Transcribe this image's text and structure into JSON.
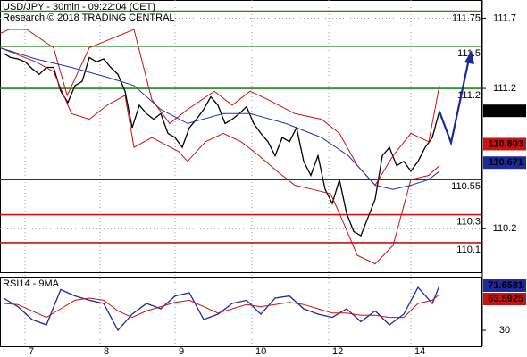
{
  "chart_data": [
    {
      "type": "line",
      "title": "USD/JPY - 30min - 09:22:04 (CET)",
      "subtitle": "Research © 2018 TRADING CENTRAL",
      "xlim": [
        -0.5,
        67
      ],
      "xticks": [
        {
          "value": 3,
          "label": "7"
        },
        {
          "value": 13.5,
          "label": "8"
        },
        {
          "value": 24,
          "label": "9"
        },
        {
          "value": 34.75,
          "label": "10"
        },
        {
          "value": 45.5,
          "label": "12"
        },
        {
          "value": 57,
          "label": "14"
        }
      ],
      "ylim": [
        109.89,
        111.83
      ],
      "yticks": [
        110.2,
        111.2,
        111.7
      ],
      "grid": true,
      "levels": [
        {
          "value": 111.75,
          "color": "#1a8a1a"
        },
        {
          "value": 111.5,
          "color": "#1a8a1a"
        },
        {
          "value": 111.2,
          "color": "#1a8a1a"
        },
        {
          "value": 110.55,
          "color": "#1c2a9c"
        },
        {
          "value": 110.3,
          "color": "#cc1111"
        },
        {
          "value": 110.1,
          "color": "#cc1111"
        }
      ],
      "tags": [
        {
          "value": 111.04,
          "color": "#000000"
        },
        {
          "value": 110.803,
          "color": "#cc1111"
        },
        {
          "value": 110.671,
          "color": "#1c2a9c"
        }
      ],
      "series": [
        {
          "color": "#000000",
          "x": [
            0,
            1,
            2,
            3,
            4,
            5,
            6,
            7,
            8,
            9,
            10,
            11,
            12,
            13,
            14,
            15,
            16,
            17,
            18,
            19,
            20,
            21,
            22,
            23,
            24,
            25,
            26,
            27,
            28,
            29,
            30,
            31,
            32,
            33,
            34,
            35,
            36,
            37,
            38,
            39,
            40,
            41,
            42,
            43,
            44,
            45,
            46,
            47,
            48,
            49,
            50,
            51,
            52,
            53,
            54,
            55,
            56,
            57,
            58,
            59,
            60,
            61
          ],
          "values": [
            111.45,
            111.42,
            111.41,
            111.39,
            111.34,
            111.3,
            111.35,
            111.35,
            111.18,
            111.1,
            111.22,
            111.25,
            111.42,
            111.39,
            111.41,
            111.35,
            111.3,
            111.18,
            110.92,
            111.08,
            111.02,
            110.98,
            111.02,
            110.88,
            110.85,
            110.78,
            110.92,
            110.98,
            111.05,
            111.14,
            111.08,
            110.95,
            110.98,
            111.02,
            111.07,
            110.95,
            110.88,
            110.82,
            110.72,
            110.85,
            110.82,
            110.92,
            110.68,
            110.58,
            110.72,
            110.48,
            110.38,
            110.55,
            110.31,
            110.18,
            110.15,
            110.28,
            110.41,
            110.72,
            110.78,
            110.65,
            110.68,
            110.61,
            110.68,
            110.78,
            110.85,
            111.04
          ]
        },
        {
          "color": "#cc1111",
          "x": [
            -0.5,
            0.75,
            3.25,
            7,
            8.9,
            12,
            18.25,
            20.75,
            23.25,
            25.75,
            29.5,
            32,
            34.5,
            37,
            40.75,
            44.5,
            47,
            49.5,
            52,
            54.5,
            57,
            59.5,
            61
          ],
          "values": [
            111.59,
            111.62,
            111.62,
            111.49,
            111.15,
            111.49,
            111.62,
            111.12,
            110.95,
            111.05,
            111.18,
            111.08,
            111.18,
            111.12,
            111.02,
            110.98,
            110.88,
            110.65,
            110.51,
            110.72,
            110.88,
            110.82,
            111.22
          ]
        },
        {
          "color": "#cc1111",
          "x": [
            -0.5,
            4.5,
            7,
            9.5,
            12,
            14.5,
            17,
            18.25,
            20.75,
            24.5,
            25.75,
            28.25,
            30.75,
            33.25,
            35.75,
            38.25,
            40.75,
            43.25,
            45.75,
            47,
            49.5,
            52,
            54.5,
            57,
            59.5,
            61
          ],
          "values": [
            111.49,
            111.39,
            111.32,
            111.02,
            110.98,
            111.08,
            111.15,
            110.78,
            110.85,
            110.75,
            110.68,
            110.82,
            110.88,
            110.82,
            110.72,
            110.61,
            110.51,
            110.48,
            110.45,
            110.31,
            110.01,
            109.95,
            110.08,
            110.55,
            110.58,
            110.65
          ]
        },
        {
          "color": "#2233aa",
          "x": [
            -0.5,
            4.5,
            9.5,
            14.5,
            18.25,
            22,
            25.75,
            30.75,
            34.5,
            39.5,
            44.5,
            48.25,
            52,
            54.5,
            57,
            59.5,
            61
          ],
          "values": [
            111.49,
            111.41,
            111.35,
            111.28,
            111.22,
            111.05,
            110.95,
            111.02,
            111.02,
            110.95,
            110.85,
            110.72,
            110.51,
            110.48,
            110.51,
            110.55,
            110.61
          ]
        }
      ]
    },
    {
      "type": "line",
      "title": "RSI14 - 9MA",
      "xlim": [
        -0.5,
        67
      ],
      "ylim": [
        15,
        80
      ],
      "yticks": [
        30
      ],
      "tags": [
        {
          "value": 71.6581,
          "color": "#1c2a9c"
        },
        {
          "value": 63.5925,
          "color": "#cc1111"
        }
      ],
      "series": [
        {
          "color": "#1c2a9c",
          "x": [
            0,
            2,
            4,
            6,
            8,
            10,
            12,
            14,
            16,
            18,
            20,
            22,
            24,
            26,
            28,
            30,
            32,
            34,
            36,
            38,
            40,
            42,
            44,
            46,
            48,
            50,
            52,
            54,
            56,
            58,
            60,
            61
          ],
          "values": [
            60,
            52,
            40,
            35,
            68,
            62,
            58,
            55,
            30,
            45,
            55,
            50,
            62,
            65,
            40,
            45,
            55,
            58,
            45,
            60,
            62,
            50,
            45,
            42,
            50,
            38,
            48,
            35,
            45,
            70,
            55,
            71.66
          ]
        },
        {
          "color": "#cc1111",
          "x": [
            0,
            2,
            4,
            6,
            8,
            10,
            12,
            14,
            16,
            18,
            20,
            22,
            24,
            26,
            28,
            30,
            32,
            34,
            36,
            38,
            40,
            42,
            44,
            46,
            48,
            50,
            52,
            54,
            56,
            58,
            60,
            61
          ],
          "values": [
            55,
            54,
            48,
            42,
            50,
            58,
            60,
            58,
            48,
            42,
            48,
            52,
            56,
            58,
            52,
            46,
            50,
            54,
            52,
            54,
            56,
            54,
            50,
            46,
            46,
            44,
            44,
            42,
            42,
            55,
            58,
            63.59
          ]
        }
      ]
    }
  ]
}
